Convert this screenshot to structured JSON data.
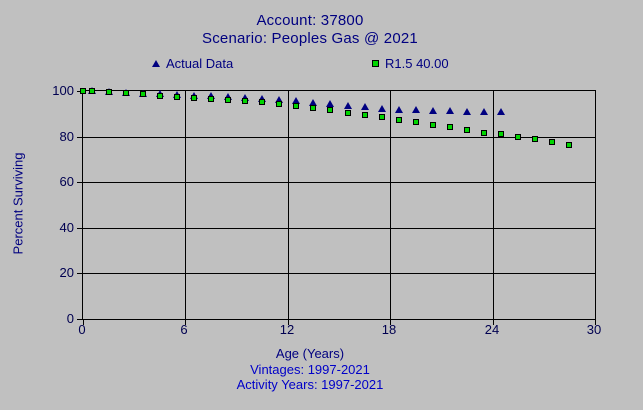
{
  "title": {
    "line1": "Account: 37800",
    "line2": "Scenario: Peoples Gas @ 2021"
  },
  "footer": {
    "age_label": "Age (Years)",
    "vintages": "Vintages: 1997-2021",
    "activity_years": "Activity Years: 1997-2021"
  },
  "colors": {
    "background": "#c0c0c0",
    "grid": "#000000",
    "title_text": "#000080",
    "footer_text": "#0000c8",
    "actual_marker": "#000080",
    "curve_marker": "#00d500"
  },
  "chart_data": {
    "type": "scatter",
    "title": "Account: 37800 — Scenario: Peoples Gas @ 2021",
    "xlabel": "Age (Years)",
    "ylabel": "Percent Surviving",
    "xlim": [
      0,
      30
    ],
    "ylim": [
      0,
      100
    ],
    "x_ticks": [
      0,
      6,
      12,
      18,
      24,
      30
    ],
    "y_ticks": [
      0,
      20,
      40,
      60,
      80,
      100
    ],
    "grid": true,
    "legend_position": "top",
    "series": [
      {
        "name": "Actual Data",
        "marker": "triangle",
        "color": "#000080",
        "points": [
          [
            0.5,
            100
          ],
          [
            1.5,
            99.6
          ],
          [
            2.5,
            99.2
          ],
          [
            3.5,
            98.9
          ],
          [
            4.5,
            98.6
          ],
          [
            5.5,
            98.3
          ],
          [
            6.5,
            98.0
          ],
          [
            7.5,
            97.7
          ],
          [
            8.5,
            97.4
          ],
          [
            9.5,
            97.0
          ],
          [
            10.5,
            96.6
          ],
          [
            11.5,
            96.1
          ],
          [
            12.5,
            95.5
          ],
          [
            13.5,
            94.9
          ],
          [
            14.5,
            94.2
          ],
          [
            15.5,
            93.5
          ],
          [
            16.5,
            92.9
          ],
          [
            17.5,
            92.3
          ],
          [
            18.5,
            91.8
          ],
          [
            19.5,
            91.5
          ],
          [
            20.5,
            91.2
          ],
          [
            21.5,
            91.1
          ],
          [
            22.5,
            91.0
          ],
          [
            23.5,
            90.9
          ],
          [
            24.5,
            90.8
          ]
        ]
      },
      {
        "name": "R1.5 40.00",
        "marker": "square",
        "color": "#00d500",
        "points": [
          [
            0,
            100
          ],
          [
            0.5,
            99.9
          ],
          [
            1.5,
            99.5
          ],
          [
            2.5,
            99.0
          ],
          [
            3.5,
            98.5
          ],
          [
            4.5,
            98.0
          ],
          [
            5.5,
            97.5
          ],
          [
            6.5,
            97.0
          ],
          [
            7.5,
            96.5
          ],
          [
            8.5,
            96.0
          ],
          [
            9.5,
            95.5
          ],
          [
            10.5,
            95.0
          ],
          [
            11.5,
            94.2
          ],
          [
            12.5,
            93.3
          ],
          [
            13.5,
            92.4
          ],
          [
            14.5,
            91.5
          ],
          [
            15.5,
            90.5
          ],
          [
            16.5,
            89.6
          ],
          [
            17.5,
            88.6
          ],
          [
            18.5,
            87.5
          ],
          [
            19.5,
            86.4
          ],
          [
            20.5,
            85.2
          ],
          [
            21.5,
            84.0
          ],
          [
            22.5,
            82.8
          ],
          [
            23.5,
            81.6
          ],
          [
            24.5,
            81.0
          ],
          [
            25.5,
            79.9
          ],
          [
            26.5,
            78.8
          ],
          [
            27.5,
            77.6
          ],
          [
            28.5,
            76.3
          ]
        ]
      }
    ]
  }
}
